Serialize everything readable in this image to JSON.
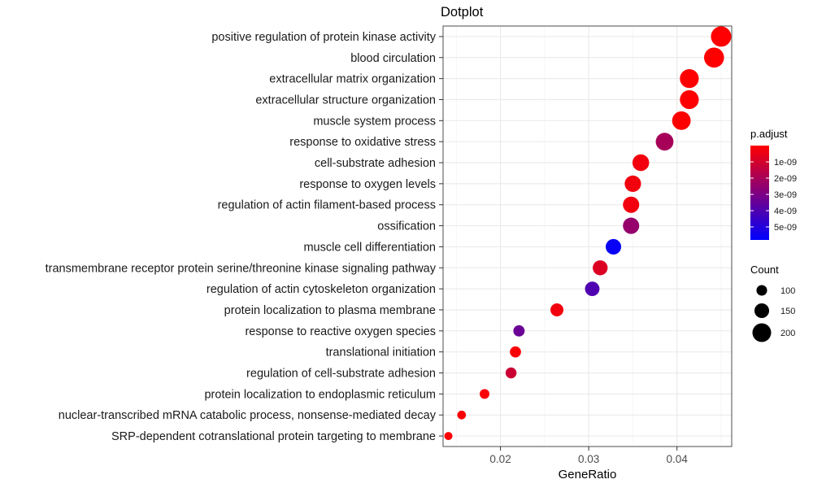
{
  "chart_data": {
    "type": "scatter",
    "title": "Dotplot",
    "xlabel": "GeneRatio",
    "ylabel": "",
    "xlim": [
      0.0135,
      0.0462
    ],
    "xticks": [
      0.02,
      0.03,
      0.04
    ],
    "xtick_labels": [
      "0.02",
      "0.03",
      "0.04"
    ],
    "grid": true,
    "legend_position": "right",
    "categories": [
      "positive regulation of protein kinase activity",
      "blood circulation",
      "extracellular matrix organization",
      "extracellular structure organization",
      "muscle system process",
      "response to oxidative stress",
      "cell-substrate adhesion",
      "response to oxygen levels",
      "regulation of actin filament-based process",
      "ossification",
      "muscle cell differentiation",
      "transmembrane receptor protein serine/threonine kinase signaling pathway",
      "regulation of actin cytoskeleton organization",
      "protein localization to plasma membrane",
      "response to reactive oxygen species",
      "translational initiation",
      "regulation of cell-substrate adhesion",
      "protein localization to endoplasmic reticulum",
      "nuclear-transcribed mRNA catabolic process, nonsense-mediated decay",
      "SRP-dependent cotranslational protein targeting to membrane"
    ],
    "points": [
      {
        "category": "positive regulation of protein kinase activity",
        "gene_ratio": 0.045,
        "count": 220,
        "p_adjust": 3e-11
      },
      {
        "category": "blood circulation",
        "gene_ratio": 0.0442,
        "count": 216,
        "p_adjust": 1e-11
      },
      {
        "category": "extracellular matrix organization",
        "gene_ratio": 0.0414,
        "count": 202,
        "p_adjust": 2e-11
      },
      {
        "category": "extracellular structure organization",
        "gene_ratio": 0.0414,
        "count": 202,
        "p_adjust": 2e-11
      },
      {
        "category": "muscle system process",
        "gene_ratio": 0.0405,
        "count": 198,
        "p_adjust": 5e-11
      },
      {
        "category": "response to oxidative stress",
        "gene_ratio": 0.0386,
        "count": 188,
        "p_adjust": 2e-09
      },
      {
        "category": "cell-substrate adhesion",
        "gene_ratio": 0.0359,
        "count": 175,
        "p_adjust": 3e-10
      },
      {
        "category": "response to oxygen levels",
        "gene_ratio": 0.035,
        "count": 171,
        "p_adjust": 3e-10
      },
      {
        "category": "regulation of actin filament-based process",
        "gene_ratio": 0.0348,
        "count": 170,
        "p_adjust": 3e-10
      },
      {
        "category": "ossification",
        "gene_ratio": 0.0348,
        "count": 170,
        "p_adjust": 2.4e-09
      },
      {
        "category": "muscle cell differentiation",
        "gene_ratio": 0.0328,
        "count": 160,
        "p_adjust": 5.6e-09
      },
      {
        "category": "transmembrane receptor protein serine/threonine kinase signaling pathway",
        "gene_ratio": 0.0313,
        "count": 153,
        "p_adjust": 8e-10
      },
      {
        "category": "regulation of actin cytoskeleton organization",
        "gene_ratio": 0.0304,
        "count": 148,
        "p_adjust": 4e-09
      },
      {
        "category": "protein localization to plasma membrane",
        "gene_ratio": 0.0264,
        "count": 129,
        "p_adjust": 3e-10
      },
      {
        "category": "response to reactive oxygen species",
        "gene_ratio": 0.0221,
        "count": 108,
        "p_adjust": 3.4e-09
      },
      {
        "category": "translational initiation",
        "gene_ratio": 0.0217,
        "count": 106,
        "p_adjust": 1e-10
      },
      {
        "category": "regulation of cell-substrate adhesion",
        "gene_ratio": 0.0212,
        "count": 104,
        "p_adjust": 1.2e-09
      },
      {
        "category": "protein localization to endoplasmic reticulum",
        "gene_ratio": 0.0182,
        "count": 89,
        "p_adjust": 1e-10
      },
      {
        "category": "nuclear-transcribed mRNA catabolic process, nonsense-mediated decay",
        "gene_ratio": 0.0156,
        "count": 76,
        "p_adjust": 1e-10
      },
      {
        "category": "SRP-dependent cotranslational protein targeting to membrane",
        "gene_ratio": 0.0141,
        "count": 69,
        "p_adjust": 1e-10
      }
    ],
    "color_legend": {
      "title": "p.adjust",
      "range": [
        0,
        5.8e-09
      ],
      "low_color": "#ff0000",
      "high_color": "#0000ff",
      "ticks": [
        1e-09,
        2e-09,
        3e-09,
        4e-09,
        5e-09
      ],
      "tick_labels": [
        "1e-09",
        "2e-09",
        "3e-09",
        "4e-09",
        "5e-09"
      ]
    },
    "size_legend": {
      "title": "Count",
      "values": [
        100,
        150,
        200
      ],
      "labels": [
        "100",
        "150",
        "200"
      ],
      "count_range": [
        69,
        220
      ]
    },
    "colors": {
      "panel_border": "#4d4d4d",
      "grid_major": "#ebebeb",
      "grid_minor": "#f5f5f5",
      "legend_key": "#000000"
    }
  }
}
